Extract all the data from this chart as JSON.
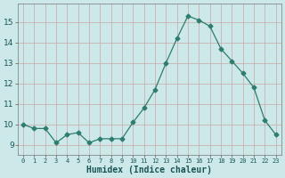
{
  "x": [
    0,
    1,
    2,
    3,
    4,
    5,
    6,
    7,
    8,
    9,
    10,
    11,
    12,
    13,
    14,
    15,
    16,
    17,
    18,
    19,
    20,
    21,
    22,
    23
  ],
  "y": [
    10.0,
    9.8,
    9.8,
    9.1,
    9.5,
    9.6,
    9.1,
    9.3,
    9.3,
    9.3,
    10.1,
    10.8,
    11.7,
    13.0,
    14.2,
    15.3,
    15.1,
    14.8,
    13.7,
    13.1,
    12.5,
    11.8,
    10.2,
    9.5
  ],
  "line_color": "#2e7d6e",
  "marker": "D",
  "marker_size": 2.5,
  "bg_color": "#cce8e8",
  "grid_color": "#c8a8a8",
  "xlabel": "Humidex (Indice chaleur)",
  "ylim": [
    8.5,
    15.9
  ],
  "yticks": [
    9,
    10,
    11,
    12,
    13,
    14,
    15
  ],
  "xticks": [
    0,
    1,
    2,
    3,
    4,
    5,
    6,
    7,
    8,
    9,
    10,
    11,
    12,
    13,
    14,
    15,
    16,
    17,
    18,
    19,
    20,
    21,
    22,
    23
  ],
  "xlabels": [
    "0",
    "1",
    "2",
    "3",
    "4",
    "5",
    "6",
    "7",
    "8",
    "9",
    "10",
    "11",
    "12",
    "13",
    "14",
    "15",
    "16",
    "17",
    "18",
    "19",
    "20",
    "21",
    "22",
    "23"
  ]
}
